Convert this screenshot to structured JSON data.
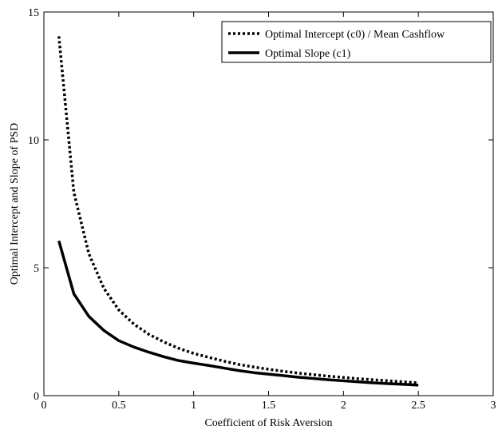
{
  "chart_data": {
    "type": "line",
    "title": "",
    "xlabel": "Coefficient of Risk Aversion",
    "ylabel": "Optimal Intercept and Slope of PSD",
    "xlim": [
      0,
      3
    ],
    "ylim": [
      0,
      15
    ],
    "xticks": [
      0,
      0.5,
      1,
      1.5,
      2,
      2.5,
      3
    ],
    "xtick_labels": [
      "0",
      "0.5",
      "1",
      "1.5",
      "2",
      "2.5",
      "3"
    ],
    "yticks": [
      0,
      5,
      10,
      15
    ],
    "ytick_labels": [
      "0",
      "5",
      "10",
      "15"
    ],
    "grid": false,
    "legend_position": "top-right",
    "series": [
      {
        "name": "Optimal Intercept (c0) / Mean Cashflow",
        "style": "dotted",
        "color": "#000000",
        "x": [
          0.1,
          0.2,
          0.3,
          0.4,
          0.5,
          0.6,
          0.7,
          0.8,
          0.9,
          1.0,
          1.1,
          1.2,
          1.3,
          1.4,
          1.5,
          1.6,
          1.7,
          1.8,
          1.9,
          2.0,
          2.1,
          2.2,
          2.3,
          2.4,
          2.5
        ],
        "y": [
          14.05,
          7.95,
          5.55,
          4.2,
          3.35,
          2.8,
          2.4,
          2.1,
          1.85,
          1.65,
          1.5,
          1.35,
          1.22,
          1.12,
          1.03,
          0.95,
          0.88,
          0.82,
          0.76,
          0.71,
          0.66,
          0.62,
          0.58,
          0.54,
          0.5
        ]
      },
      {
        "name": "Optimal Slope (c1)",
        "style": "solid",
        "color": "#000000",
        "x": [
          0.1,
          0.2,
          0.3,
          0.4,
          0.5,
          0.6,
          0.7,
          0.8,
          0.9,
          1.0,
          1.1,
          1.2,
          1.3,
          1.4,
          1.5,
          1.6,
          1.7,
          1.8,
          1.9,
          2.0,
          2.1,
          2.2,
          2.3,
          2.4,
          2.5
        ],
        "y": [
          6.05,
          3.98,
          3.1,
          2.55,
          2.15,
          1.9,
          1.7,
          1.52,
          1.37,
          1.27,
          1.18,
          1.08,
          0.98,
          0.9,
          0.84,
          0.78,
          0.72,
          0.67,
          0.62,
          0.58,
          0.54,
          0.5,
          0.47,
          0.44,
          0.41
        ]
      }
    ]
  }
}
